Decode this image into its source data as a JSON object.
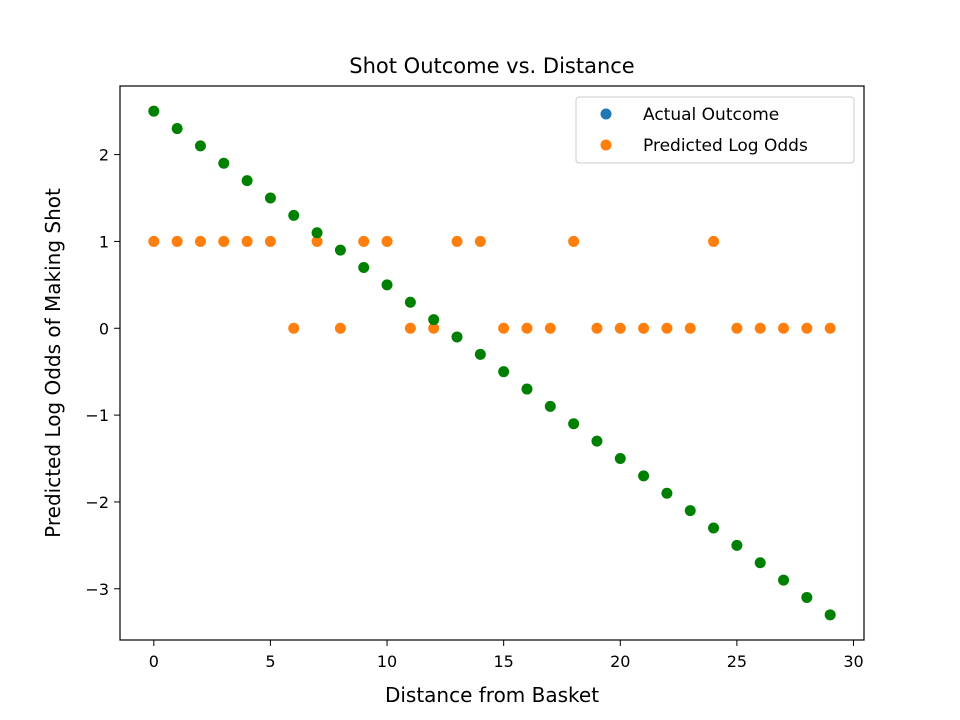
{
  "chart_data": {
    "type": "scatter",
    "title": "Shot Outcome vs. Distance",
    "xlabel": "Distance from Basket",
    "ylabel": "Predicted Log Odds of Making Shot",
    "xlim": [
      -1.45,
      30.45
    ],
    "ylim": [
      -3.59,
      2.79
    ],
    "xticks": [
      0,
      5,
      10,
      15,
      20,
      25,
      30
    ],
    "yticks": [
      -3,
      -2,
      -1,
      0,
      1,
      2
    ],
    "ytick_labels": [
      "−3",
      "−2",
      "−1",
      "0",
      "1",
      "2"
    ],
    "legend_position": "top-right",
    "series": [
      {
        "name": "Actual Outcome",
        "legend_color": "#1f77b4",
        "color": "#ff7f0e",
        "x": [
          0,
          1,
          2,
          3,
          4,
          5,
          6,
          7,
          8,
          9,
          10,
          11,
          12,
          13,
          14,
          15,
          16,
          17,
          18,
          19,
          20,
          21,
          22,
          23,
          24,
          25,
          26,
          27,
          28,
          29
        ],
        "y": [
          1,
          1,
          1,
          1,
          1,
          1,
          0,
          1,
          0,
          1,
          1,
          0,
          0,
          1,
          1,
          0,
          0,
          0,
          1,
          0,
          0,
          0,
          0,
          0,
          1,
          0,
          0,
          0,
          0,
          0
        ]
      },
      {
        "name": "Predicted Log Odds",
        "legend_color": "#ff7f0e",
        "color": "#008000",
        "x": [
          0,
          1,
          2,
          3,
          4,
          5,
          6,
          7,
          8,
          9,
          10,
          11,
          12,
          13,
          14,
          15,
          16,
          17,
          18,
          19,
          20,
          21,
          22,
          23,
          24,
          25,
          26,
          27,
          28,
          29
        ],
        "y": [
          2.5,
          2.3,
          2.1,
          1.9,
          1.7,
          1.5,
          1.3,
          1.1,
          0.9,
          0.7,
          0.5,
          0.3,
          0.1,
          -0.1,
          -0.3,
          -0.5,
          -0.7,
          -0.9,
          -1.1,
          -1.3,
          -1.5,
          -1.7,
          -1.9,
          -2.1,
          -2.3,
          -2.5,
          -2.7,
          -2.9,
          -3.1,
          -3.3
        ]
      }
    ]
  }
}
